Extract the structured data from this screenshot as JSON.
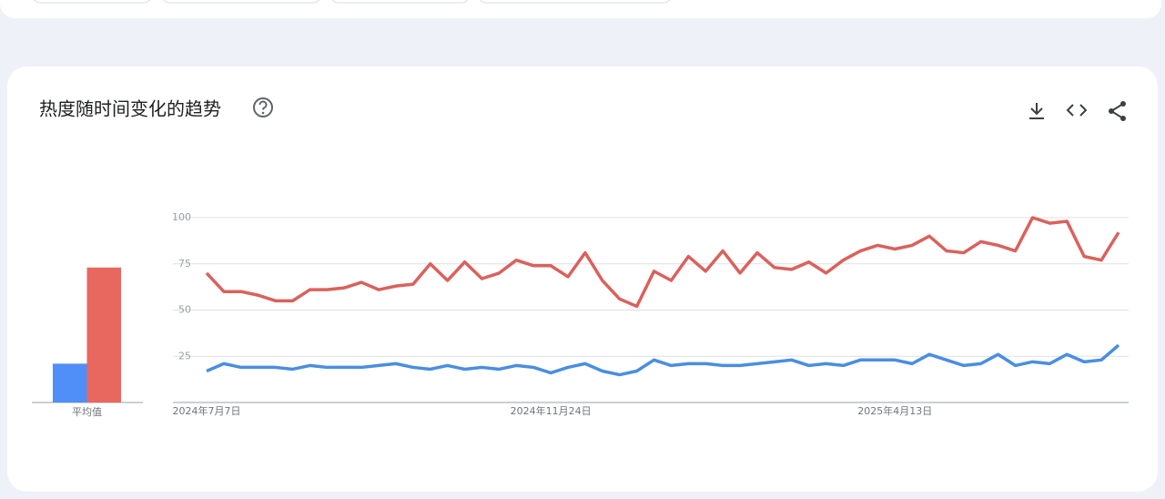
{
  "header": {
    "title": "热度随时间变化的趋势"
  },
  "chart_data": [
    {
      "type": "bar",
      "categories": [
        "平均值"
      ],
      "ylim": [
        0,
        100
      ],
      "series": [
        {
          "color": "#4f8ff7",
          "values": [
            21
          ]
        },
        {
          "color": "#e8675f",
          "values": [
            73
          ]
        }
      ]
    },
    {
      "type": "line",
      "ylim": [
        0,
        100
      ],
      "yticks": [
        25,
        50,
        75,
        100
      ],
      "grid": true,
      "categories": [
        "2024年7月7日",
        null,
        null,
        null,
        null,
        null,
        null,
        null,
        null,
        null,
        null,
        null,
        null,
        null,
        null,
        null,
        null,
        null,
        null,
        null,
        "2024年11月24日",
        null,
        null,
        null,
        null,
        null,
        null,
        null,
        null,
        null,
        null,
        null,
        null,
        null,
        null,
        null,
        null,
        null,
        null,
        null,
        "2025年4月13日",
        null,
        null,
        null,
        null,
        null,
        null,
        null,
        null,
        null,
        null,
        null,
        null,
        null
      ],
      "series": [
        {
          "color": "#4a8ee0",
          "values": [
            17,
            21,
            19,
            19,
            19,
            18,
            20,
            19,
            19,
            19,
            20,
            21,
            19,
            18,
            20,
            18,
            19,
            18,
            20,
            19,
            16,
            19,
            21,
            17,
            15,
            17,
            23,
            20,
            21,
            21,
            20,
            20,
            21,
            22,
            23,
            20,
            21,
            20,
            23,
            23,
            23,
            21,
            26,
            23,
            20,
            21,
            26,
            20,
            22,
            21,
            26,
            22,
            23,
            31
          ]
        },
        {
          "color": "#d9625c",
          "values": [
            70,
            60,
            60,
            58,
            55,
            55,
            61,
            61,
            62,
            65,
            61,
            63,
            64,
            75,
            66,
            76,
            67,
            70,
            77,
            74,
            74,
            68,
            81,
            66,
            56,
            52,
            71,
            66,
            79,
            71,
            82,
            70,
            81,
            73,
            72,
            76,
            70,
            77,
            82,
            85,
            83,
            85,
            90,
            82,
            81,
            87,
            85,
            82,
            100,
            97,
            98,
            79,
            77,
            92
          ]
        }
      ]
    }
  ]
}
